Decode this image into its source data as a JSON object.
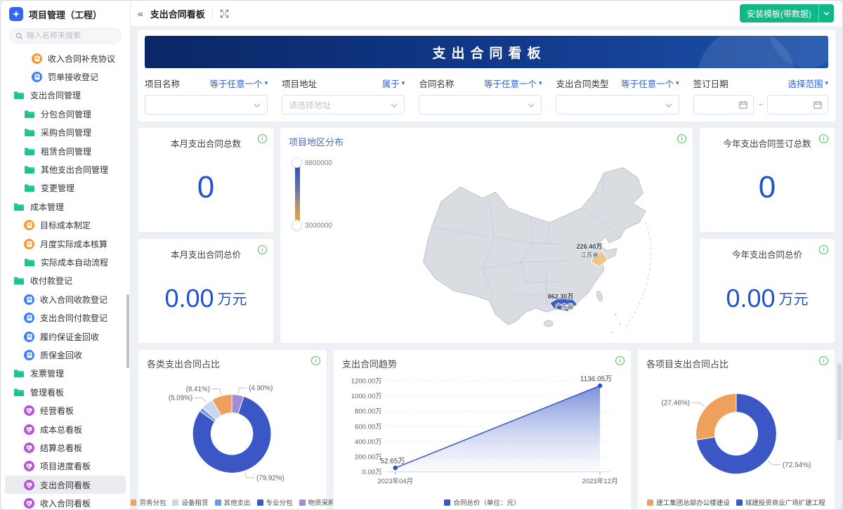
{
  "app": {
    "title": "项目管理（工程）",
    "search_placeholder": "输入名称来搜索"
  },
  "topbar": {
    "tab": "支出合同看板",
    "install_button": "安装模板(带数据)"
  },
  "banner": {
    "title": "支出合同看板"
  },
  "sidebar": {
    "items": [
      {
        "label": "收入合同补充协议",
        "icon": "doc-orange",
        "level": 3
      },
      {
        "label": "罚单接收登记",
        "icon": "doc-blue",
        "level": 3
      },
      {
        "label": "支出合同管理",
        "icon": "folder",
        "level": 1
      },
      {
        "label": "分包合同管理",
        "icon": "folder",
        "level": 2
      },
      {
        "label": "采购合同管理",
        "icon": "folder",
        "level": 2
      },
      {
        "label": "租赁合同管理",
        "icon": "folder",
        "level": 2
      },
      {
        "label": "其他支出合同管理",
        "icon": "folder",
        "level": 2
      },
      {
        "label": "变更管理",
        "icon": "folder",
        "level": 2
      },
      {
        "label": "成本管理",
        "icon": "folder",
        "level": 1
      },
      {
        "label": "目标成本制定",
        "icon": "doc-orange",
        "level": 2
      },
      {
        "label": "月度实际成本核算",
        "icon": "doc-orange",
        "level": 2
      },
      {
        "label": "实际成本自动流程",
        "icon": "folder",
        "level": 2
      },
      {
        "label": "收付款登记",
        "icon": "folder",
        "level": 1
      },
      {
        "label": "收入合同收款登记",
        "icon": "doc-blue",
        "level": 2
      },
      {
        "label": "支出合同付款登记",
        "icon": "doc-blue",
        "level": 2
      },
      {
        "label": "履约保证金回收",
        "icon": "doc-blue",
        "level": 2
      },
      {
        "label": "质保金回收",
        "icon": "doc-blue",
        "level": 2
      },
      {
        "label": "发票管理",
        "icon": "folder",
        "level": 1
      },
      {
        "label": "管理看板",
        "icon": "folder",
        "level": 1
      },
      {
        "label": "经营看板",
        "icon": "board-purple",
        "level": 2
      },
      {
        "label": "成本总看板",
        "icon": "board-purple",
        "level": 2
      },
      {
        "label": "结算总看板",
        "icon": "board-purple",
        "level": 2
      },
      {
        "label": "项目进度看板",
        "icon": "board-purple",
        "level": 2
      },
      {
        "label": "支出合同看板",
        "icon": "board-purple",
        "level": 2,
        "selected": true
      },
      {
        "label": "收入合同看板",
        "icon": "board-purple",
        "level": 2
      }
    ]
  },
  "filters": [
    {
      "label": "项目名称",
      "operator": "等于任意一个",
      "control": "select",
      "placeholder": ""
    },
    {
      "label": "项目地址",
      "operator": "属于",
      "control": "select",
      "placeholder": "请选择地址"
    },
    {
      "label": "合同名称",
      "operator": "等于任意一个",
      "control": "select",
      "placeholder": ""
    },
    {
      "label": "支出合同类型",
      "operator": "等于任意一个",
      "control": "select",
      "placeholder": ""
    },
    {
      "label": "签订日期",
      "operator": "选择范围",
      "control": "daterange",
      "separator": "~"
    }
  ],
  "stat_cards": [
    {
      "title": "本月支出合同总数",
      "value": "0",
      "unit": ""
    },
    {
      "title": "本月支出合同总价",
      "value": "0.00",
      "unit": "万元"
    },
    {
      "title": "今年支出合同签订总数",
      "value": "0",
      "unit": ""
    },
    {
      "title": "今年支出合同总价",
      "value": "0.00",
      "unit": "万元"
    }
  ],
  "map_card": {
    "title": "项目地区分布",
    "legend_max": "8800000",
    "legend_min": "3000000",
    "regions": [
      {
        "name": "江苏省",
        "value_label": "226.40万",
        "color": "#f2c489"
      },
      {
        "name": "广东省",
        "value_label": "862.30万",
        "color": "#3a5ec2"
      }
    ]
  },
  "chart_data": [
    {
      "type": "pie",
      "title": "各类支出合同占比",
      "slices": [
        {
          "name": "物资采购",
          "value": 4.9,
          "color": "#a18cd8"
        },
        {
          "name": "专业分包",
          "value": 79.92,
          "color": "#3a57c5"
        },
        {
          "name": "其他支出",
          "value": 1.68,
          "color": "#7697e2",
          "show_label": false
        },
        {
          "name": "设备租赁",
          "value": 5.09,
          "color": "#c9d5f1"
        },
        {
          "name": "劳务分包",
          "value": 8.41,
          "color": "#efa05c"
        }
      ],
      "legend": [
        {
          "name": "劳务分包",
          "color": "#efa05c"
        },
        {
          "name": "设备租赁",
          "color": "#c9d5f1"
        },
        {
          "name": "其他支出",
          "color": "#7697e2"
        },
        {
          "name": "专业分包",
          "color": "#3a57c5"
        },
        {
          "name": "物资采购",
          "color": "#a18cd8"
        }
      ]
    },
    {
      "type": "line",
      "title": "支出合同趋势",
      "x": [
        "2023年04月",
        "2023年12月"
      ],
      "series": [
        {
          "name": "合同总价（单位：元）",
          "color": "#3a57c5",
          "values_wan": [
            52.65,
            1136.05
          ]
        }
      ],
      "point_labels": [
        "52.65万",
        "1136.05万"
      ],
      "ylim": [
        0,
        1200
      ],
      "yticks": [
        {
          "v": 0,
          "label": "0.00万"
        },
        {
          "v": 200,
          "label": "200.00万"
        },
        {
          "v": 400,
          "label": "400.00万"
        },
        {
          "v": 600,
          "label": "600.00万"
        },
        {
          "v": 800,
          "label": "800.00万"
        },
        {
          "v": 1000,
          "label": "1000.00万"
        },
        {
          "v": 1200,
          "label": "1200.00万"
        }
      ],
      "grid": "dotted",
      "legend_position": "bottom"
    },
    {
      "type": "pie",
      "title": "各项目支出合同占比",
      "slices": [
        {
          "name": "城建投资商业广场扩建工程",
          "value": 72.54,
          "color": "#3a57c5"
        },
        {
          "name": "建工集团总部办公楼建设",
          "value": 27.46,
          "color": "#efa05c"
        }
      ],
      "legend": [
        {
          "name": "建工集团总部办公楼建设",
          "color": "#efa05c"
        },
        {
          "name": "城建投资商业广场扩建工程",
          "color": "#3a57c5"
        }
      ]
    }
  ],
  "colors": {
    "stat_blue": "#2154cb",
    "button_green": "#10b887",
    "link_blue": "#2e5fd4",
    "banner_dark": "#0a2766",
    "banner_light": "#1d52ab",
    "map_default": "#d9dce1",
    "map_orange": "#f2c489",
    "map_blue": "#3a5ec2",
    "info_green": "#49c05f"
  }
}
